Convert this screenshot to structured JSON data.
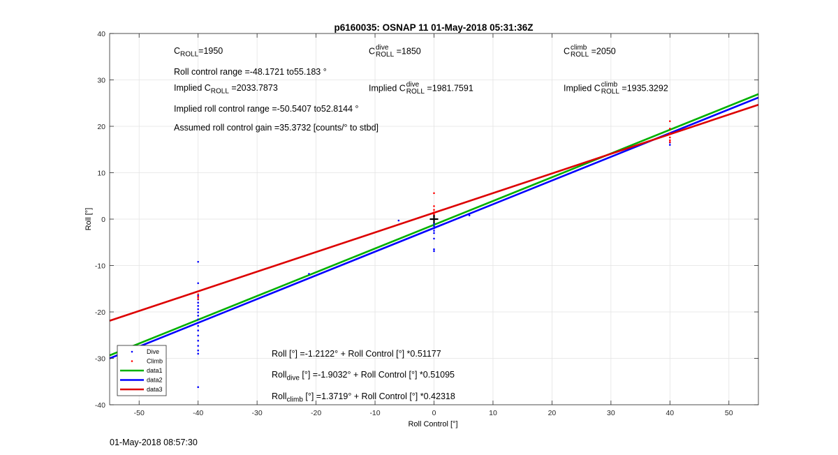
{
  "chart_data": {
    "type": "scatter",
    "title": "p6160035: OSNAP 11 01-May-2018 05:31:36Z",
    "xlabel": "Roll Control [°]",
    "ylabel": "Roll [°]",
    "xlim": [
      -55,
      55
    ],
    "ylim": [
      -40,
      40
    ],
    "xticks": [
      -50,
      -40,
      -30,
      -20,
      -10,
      0,
      10,
      20,
      30,
      40,
      50
    ],
    "yticks": [
      -40,
      -30,
      -20,
      -10,
      0,
      10,
      20,
      30,
      40
    ],
    "grid": true,
    "legend": {
      "position": "bottom-left",
      "entries": [
        "Dive",
        "Climb",
        "data1",
        "data2",
        "data3"
      ]
    },
    "series": [
      {
        "name": "Dive",
        "kind": "points",
        "color": "#0000ff",
        "points": [
          [
            -40,
            -9.2
          ],
          [
            -40,
            -13.8
          ],
          [
            -40,
            -16.5
          ],
          [
            -40,
            -17.3
          ],
          [
            -40,
            -18.0
          ],
          [
            -40,
            -18.7
          ],
          [
            -40,
            -19.4
          ],
          [
            -40,
            -20.1
          ],
          [
            -40,
            -20.8
          ],
          [
            -40,
            -21.6
          ],
          [
            -40,
            -22.3
          ],
          [
            -40,
            -23.0
          ],
          [
            -40,
            -24.0
          ],
          [
            -40,
            -25.1
          ],
          [
            -40,
            -26.2
          ],
          [
            -40,
            -27.3
          ],
          [
            -40,
            -28.3
          ],
          [
            -40,
            -29.0
          ],
          [
            -40,
            -36.2
          ],
          [
            -51,
            -28.5
          ],
          [
            -21.2,
            -11.8
          ],
          [
            -6,
            -0.3
          ],
          [
            0,
            -1.0
          ],
          [
            0,
            -1.5
          ],
          [
            0,
            -2.0
          ],
          [
            0,
            -2.5
          ],
          [
            0,
            -3.0
          ],
          [
            0,
            -4.2
          ],
          [
            0,
            -6.5
          ],
          [
            0,
            -6.9
          ],
          [
            6,
            0.8
          ],
          [
            40,
            16.0
          ],
          [
            40,
            16.5
          ]
        ]
      },
      {
        "name": "Climb",
        "kind": "points",
        "color": "#ff0000",
        "points": [
          [
            -40,
            -16.2
          ],
          [
            -40,
            -16.8
          ],
          [
            -40,
            -17.2
          ],
          [
            0,
            5.6
          ],
          [
            0,
            2.8
          ],
          [
            0,
            2.0
          ],
          [
            0,
            1.5
          ],
          [
            0,
            1.0
          ],
          [
            0,
            0.6
          ],
          [
            40,
            21.1
          ],
          [
            40,
            19.5
          ],
          [
            40,
            18.5
          ],
          [
            40,
            17.6
          ],
          [
            40,
            17.0
          ],
          [
            40,
            16.6
          ]
        ]
      },
      {
        "name": "data1",
        "kind": "line",
        "color": "#00b000",
        "intercept": -1.2122,
        "slope": 0.51177
      },
      {
        "name": "data2",
        "kind": "line",
        "color": "#0000ff",
        "intercept": -1.9032,
        "slope": 0.51095
      },
      {
        "name": "data3",
        "kind": "line",
        "color": "#dd0000",
        "intercept": 1.3719,
        "slope": 0.42318
      }
    ],
    "marker": {
      "symbol": "+",
      "x": 0,
      "y": 0,
      "color": "#000000"
    }
  },
  "annotations": {
    "c_roll_base": "C",
    "c_roll_sub": "ROLL",
    "c_roll_val": "=1950",
    "roll_range": "Roll control range =-48.1721 to55.183 °",
    "implied_pre": "Implied C",
    "implied_sub": "ROLL",
    "implied_val": " =2033.7873",
    "implied_range": "Implied roll control range =-50.5407 to52.8144 °",
    "gain": "Assumed roll control gain =35.3732 [counts/° to stbd]",
    "c_dive_base": "C",
    "c_dive_sup": "dive",
    "c_dive_sub": "ROLL",
    "c_dive_val": " =1850",
    "imp_dive_pre": "Implied C",
    "imp_dive_sup": "dive",
    "imp_dive_sub": "ROLL",
    "imp_dive_val": " =1981.7591",
    "c_climb_base": "C",
    "c_climb_sup": "climb",
    "c_climb_sub": "ROLL",
    "c_climb_val": " =2050",
    "imp_climb_pre": "Implied C",
    "imp_climb_sup": "climb",
    "imp_climb_sub": "ROLL",
    "imp_climb_val": " =1935.3292",
    "eq1": "Roll [°] =-1.2122° + Roll Control [°] *0.51177",
    "eq2_pre": "Roll",
    "eq2_sub": "dive",
    "eq2_post": " [°] =-1.9032° + Roll Control [°] *0.51095",
    "eq3_pre": "Roll",
    "eq3_sub": "climb",
    "eq3_post": " [°] =1.3719° + Roll Control [°] *0.42318"
  },
  "footer": "01-May-2018 08:57:30"
}
